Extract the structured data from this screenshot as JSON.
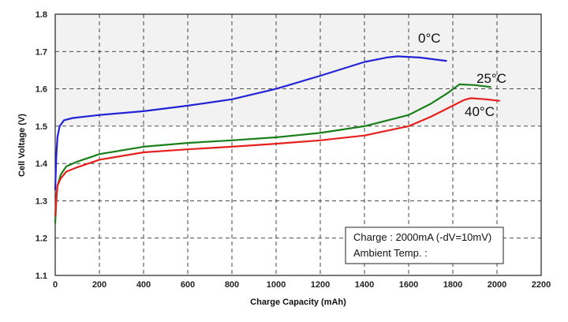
{
  "chart_data": {
    "type": "line",
    "xlabel": "Charge Capacity (mAh)",
    "ylabel": "Cell Voltage (V)",
    "xlim": [
      0,
      2200
    ],
    "ylim": [
      1.1,
      1.8
    ],
    "x_ticks": [
      0,
      200,
      400,
      600,
      800,
      1000,
      1200,
      1400,
      1600,
      1800,
      2000,
      2200
    ],
    "y_ticks": [
      1.1,
      1.2,
      1.3,
      1.4,
      1.5,
      1.6,
      1.7,
      1.8
    ],
    "x_tick_labels": [
      "0",
      "200",
      "400",
      "600",
      "800",
      "1000",
      "1200",
      "1400",
      "1600",
      "1800",
      "2000",
      "2200"
    ],
    "y_tick_labels": [
      "1.1",
      "1.2",
      "1.3",
      "1.4",
      "1.5",
      "1.6",
      "1.7",
      "1.8"
    ],
    "grid": true,
    "background_bands": [
      {
        "from": 1.5,
        "to": 1.8,
        "color": "#f2f2f2"
      },
      {
        "from": 1.1,
        "to": 1.5,
        "color": "#ffffff"
      }
    ],
    "series": [
      {
        "name": "0°C",
        "color": "#2323d6",
        "points": [
          [
            0,
            1.33
          ],
          [
            5,
            1.42
          ],
          [
            10,
            1.47
          ],
          [
            20,
            1.5
          ],
          [
            40,
            1.516
          ],
          [
            80,
            1.522
          ],
          [
            200,
            1.53
          ],
          [
            400,
            1.54
          ],
          [
            600,
            1.555
          ],
          [
            800,
            1.572
          ],
          [
            1000,
            1.6
          ],
          [
            1200,
            1.635
          ],
          [
            1400,
            1.672
          ],
          [
            1500,
            1.684
          ],
          [
            1550,
            1.687
          ],
          [
            1650,
            1.684
          ],
          [
            1770,
            1.675
          ]
        ]
      },
      {
        "name": "25°C",
        "color": "#1a7f1a",
        "points": [
          [
            0,
            1.24
          ],
          [
            5,
            1.3
          ],
          [
            10,
            1.34
          ],
          [
            25,
            1.37
          ],
          [
            50,
            1.392
          ],
          [
            100,
            1.405
          ],
          [
            200,
            1.425
          ],
          [
            400,
            1.445
          ],
          [
            600,
            1.455
          ],
          [
            800,
            1.462
          ],
          [
            1000,
            1.47
          ],
          [
            1200,
            1.482
          ],
          [
            1400,
            1.5
          ],
          [
            1600,
            1.53
          ],
          [
            1700,
            1.56
          ],
          [
            1780,
            1.59
          ],
          [
            1830,
            1.612
          ],
          [
            1900,
            1.61
          ],
          [
            1970,
            1.605
          ]
        ]
      },
      {
        "name": "40°C",
        "color": "#e6201e",
        "points": [
          [
            0,
            1.26
          ],
          [
            5,
            1.31
          ],
          [
            10,
            1.34
          ],
          [
            25,
            1.36
          ],
          [
            50,
            1.378
          ],
          [
            100,
            1.39
          ],
          [
            200,
            1.41
          ],
          [
            400,
            1.43
          ],
          [
            600,
            1.438
          ],
          [
            800,
            1.445
          ],
          [
            1000,
            1.453
          ],
          [
            1200,
            1.462
          ],
          [
            1400,
            1.475
          ],
          [
            1600,
            1.5
          ],
          [
            1700,
            1.525
          ],
          [
            1800,
            1.555
          ],
          [
            1850,
            1.57
          ],
          [
            1880,
            1.575
          ],
          [
            1950,
            1.572
          ],
          [
            2010,
            1.568
          ]
        ]
      }
    ],
    "series_labels": [
      "0°C",
      "25°C",
      "40°C"
    ],
    "annotation_lines": [
      "Charge : 2000mA (-dV=10mV)",
      "Ambient Temp. :"
    ]
  }
}
